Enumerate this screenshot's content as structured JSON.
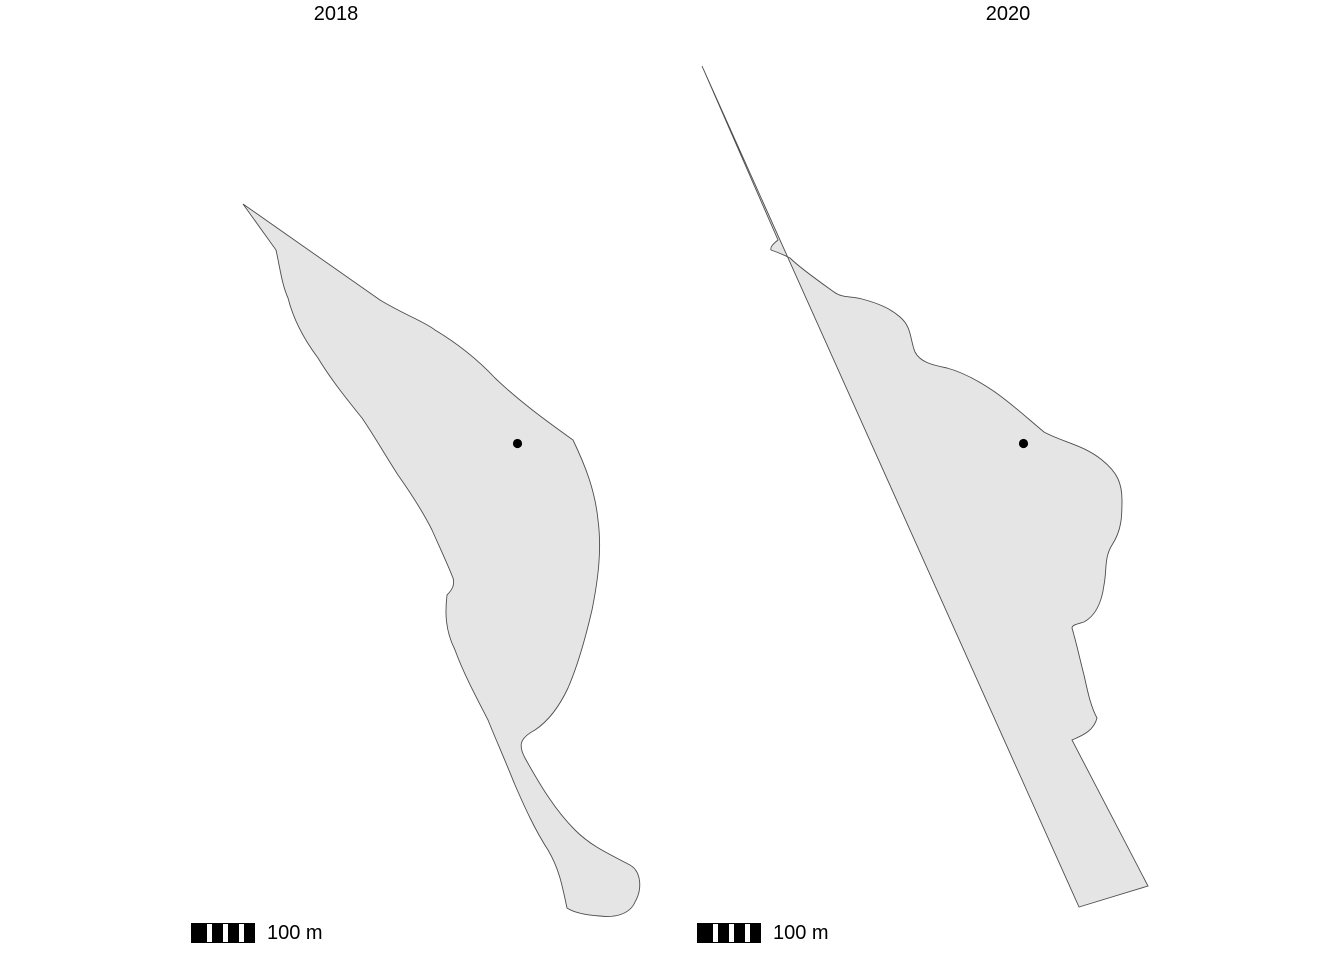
{
  "panels": [
    {
      "title": "2018",
      "scale_bar": {
        "label": "100 m"
      }
    },
    {
      "title": "2020",
      "scale_bar": {
        "label": "100 m"
      }
    }
  ],
  "style": {
    "polygon_fill": "#e5e5e5",
    "polygon_stroke": "#4d4d4d",
    "point_color": "#000000",
    "background": "#ffffff"
  }
}
